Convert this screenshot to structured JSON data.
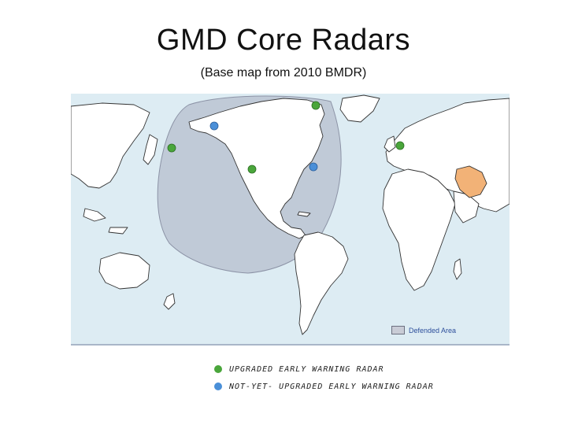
{
  "slide": {
    "title": "GMD Core Radars",
    "subtitle": "(Base map from 2010 BMDR)"
  },
  "map": {
    "defended_area_label": "Defended Area",
    "colors": {
      "ocean": "#ddecf3",
      "land": "#ffffff",
      "coast": "#333333",
      "defended_fill": "#a7aebf",
      "highlight_country": "#f2b277",
      "upgraded_radar": "#4aa63b",
      "not_upgraded_radar": "#4a8fd8"
    }
  },
  "legend": {
    "upgraded": "UPGRADED  EARLY  WARNING  RADAR",
    "not_upgraded": "NOT-YET- UPGRADED  EARLY  WARNING  RADAR"
  }
}
